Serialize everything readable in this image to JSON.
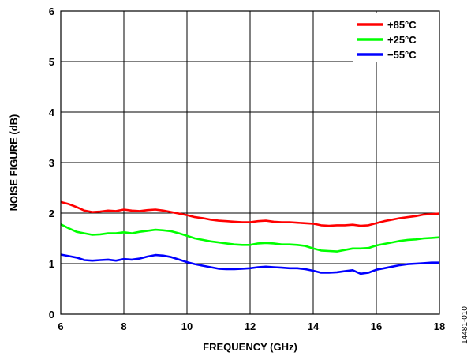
{
  "chart_data": {
    "type": "line",
    "xlabel": "FREQUENCY (GHz)",
    "ylabel": "NOISE FIGURE (dB)",
    "xlim": [
      6,
      18
    ],
    "ylim": [
      0,
      6
    ],
    "xticks": [
      6,
      8,
      10,
      12,
      14,
      16,
      18
    ],
    "yticks": [
      0,
      1,
      2,
      3,
      4,
      5,
      6
    ],
    "grid": true,
    "legend": "top-right",
    "figure_id": "14481-010",
    "series": [
      {
        "name": "+85°C",
        "color": "#ff0000",
        "x": [
          6.0,
          6.25,
          6.5,
          6.75,
          7.0,
          7.25,
          7.5,
          7.75,
          8.0,
          8.25,
          8.5,
          8.75,
          9.0,
          9.25,
          9.5,
          9.75,
          10.0,
          10.25,
          10.5,
          10.75,
          11.0,
          11.25,
          11.5,
          11.75,
          12.0,
          12.25,
          12.5,
          12.75,
          13.0,
          13.25,
          13.5,
          13.75,
          14.0,
          14.25,
          14.5,
          14.75,
          15.0,
          15.25,
          15.5,
          15.75,
          16.0,
          16.25,
          16.5,
          16.75,
          17.0,
          17.25,
          17.5,
          17.75,
          18.0
        ],
        "y": [
          2.22,
          2.18,
          2.12,
          2.05,
          2.02,
          2.03,
          2.05,
          2.04,
          2.07,
          2.05,
          2.04,
          2.06,
          2.07,
          2.05,
          2.02,
          1.99,
          1.96,
          1.92,
          1.9,
          1.87,
          1.85,
          1.84,
          1.83,
          1.82,
          1.82,
          1.84,
          1.85,
          1.83,
          1.82,
          1.82,
          1.81,
          1.8,
          1.79,
          1.76,
          1.75,
          1.76,
          1.76,
          1.77,
          1.75,
          1.76,
          1.8,
          1.84,
          1.87,
          1.9,
          1.92,
          1.94,
          1.97,
          1.98,
          1.99
        ]
      },
      {
        "name": "+25°C",
        "color": "#00ff00",
        "x": [
          6.0,
          6.25,
          6.5,
          6.75,
          7.0,
          7.25,
          7.5,
          7.75,
          8.0,
          8.25,
          8.5,
          8.75,
          9.0,
          9.25,
          9.5,
          9.75,
          10.0,
          10.25,
          10.5,
          10.75,
          11.0,
          11.25,
          11.5,
          11.75,
          12.0,
          12.25,
          12.5,
          12.75,
          13.0,
          13.25,
          13.5,
          13.75,
          14.0,
          14.25,
          14.5,
          14.75,
          15.0,
          15.25,
          15.5,
          15.75,
          16.0,
          16.25,
          16.5,
          16.75,
          17.0,
          17.25,
          17.5,
          17.75,
          18.0
        ],
        "y": [
          1.78,
          1.7,
          1.63,
          1.6,
          1.57,
          1.58,
          1.6,
          1.6,
          1.62,
          1.6,
          1.63,
          1.65,
          1.67,
          1.66,
          1.64,
          1.6,
          1.55,
          1.5,
          1.47,
          1.44,
          1.42,
          1.4,
          1.38,
          1.37,
          1.37,
          1.4,
          1.41,
          1.4,
          1.38,
          1.38,
          1.37,
          1.35,
          1.3,
          1.26,
          1.25,
          1.24,
          1.27,
          1.3,
          1.3,
          1.31,
          1.36,
          1.39,
          1.42,
          1.45,
          1.47,
          1.48,
          1.5,
          1.51,
          1.52
        ]
      },
      {
        "name": "−55°C",
        "color": "#0000ff",
        "x": [
          6.0,
          6.25,
          6.5,
          6.75,
          7.0,
          7.25,
          7.5,
          7.75,
          8.0,
          8.25,
          8.5,
          8.75,
          9.0,
          9.25,
          9.5,
          9.75,
          10.0,
          10.25,
          10.5,
          10.75,
          11.0,
          11.25,
          11.5,
          11.75,
          12.0,
          12.25,
          12.5,
          12.75,
          13.0,
          13.25,
          13.5,
          13.75,
          14.0,
          14.25,
          14.5,
          14.75,
          15.0,
          15.25,
          15.5,
          15.75,
          16.0,
          16.25,
          16.5,
          16.75,
          17.0,
          17.25,
          17.5,
          17.75,
          18.0
        ],
        "y": [
          1.18,
          1.15,
          1.12,
          1.07,
          1.06,
          1.07,
          1.08,
          1.06,
          1.09,
          1.08,
          1.1,
          1.14,
          1.17,
          1.16,
          1.13,
          1.08,
          1.03,
          0.99,
          0.96,
          0.93,
          0.9,
          0.89,
          0.89,
          0.9,
          0.91,
          0.93,
          0.94,
          0.93,
          0.92,
          0.91,
          0.91,
          0.89,
          0.86,
          0.82,
          0.82,
          0.83,
          0.85,
          0.87,
          0.8,
          0.82,
          0.88,
          0.91,
          0.94,
          0.97,
          0.99,
          1.0,
          1.01,
          1.02,
          1.02
        ]
      }
    ]
  }
}
